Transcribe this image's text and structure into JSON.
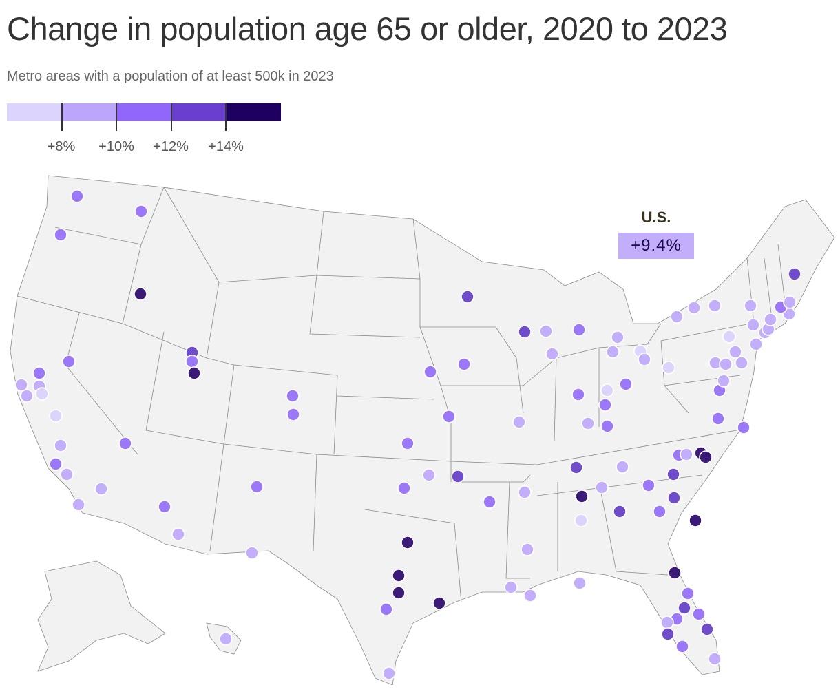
{
  "title": "Change in population age 65 or older, 2020 to 2023",
  "subtitle": "Metro areas with a population of at least 500k in 2023",
  "legend": {
    "colors": [
      "#ddd4fd",
      "#bba6fb",
      "#9166fa",
      "#6a3fd0",
      "#1e0060"
    ],
    "thresholds": [
      "+8%",
      "+10%",
      "+12%",
      "+14%"
    ]
  },
  "us": {
    "label": "U.S.",
    "value": "+9.4%",
    "color": "#c3aefc"
  },
  "map_style": {
    "land": "#f2f2f2",
    "border": "#8a8a8a"
  },
  "dot_colors": [
    "#ddd4fd",
    "#c3aefc",
    "#9b78f7",
    "#6f4cc9",
    "#3b1a78"
  ]
}
